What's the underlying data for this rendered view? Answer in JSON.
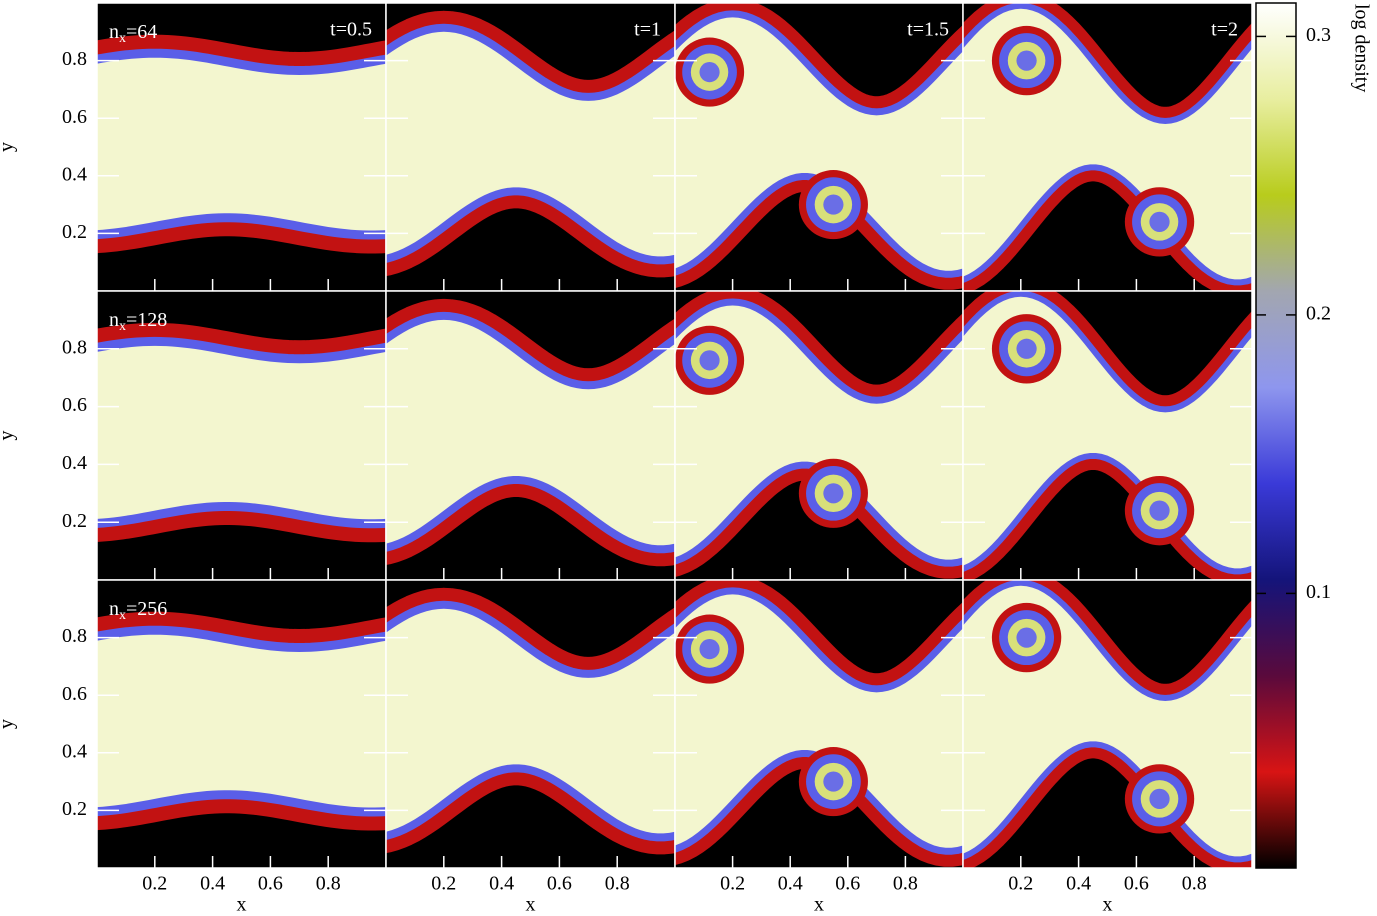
{
  "chart_data": {
    "type": "heatmap",
    "x_label": "x",
    "y_label": "y",
    "xlim": [
      0,
      1
    ],
    "ylim": [
      0,
      1
    ],
    "xticks": [
      0.2,
      0.4,
      0.6,
      0.8
    ],
    "yticks": [
      0.2,
      0.4,
      0.6,
      0.8
    ],
    "columns": [
      "t=0.5",
      "t=1",
      "t=1.5",
      "t=2"
    ],
    "rows": [
      {
        "n": "n",
        "sub": "x",
        "eq": "=64"
      },
      {
        "n": "n",
        "sub": "x",
        "eq": "=128"
      },
      {
        "n": "n",
        "sub": "x",
        "eq": "=256"
      }
    ],
    "colorbar": {
      "label": "log density",
      "lim": [
        0.0014,
        0.312
      ],
      "ticks": [
        0.1,
        0.2,
        0.3
      ],
      "colors": [
        "#000000",
        "#d81414",
        "#5a0a3c",
        "#14147a",
        "#3a3ad8",
        "#8e96ee",
        "#a2a6b0",
        "#b8cc1c",
        "#e8eea0",
        "#ffffff"
      ]
    }
  }
}
